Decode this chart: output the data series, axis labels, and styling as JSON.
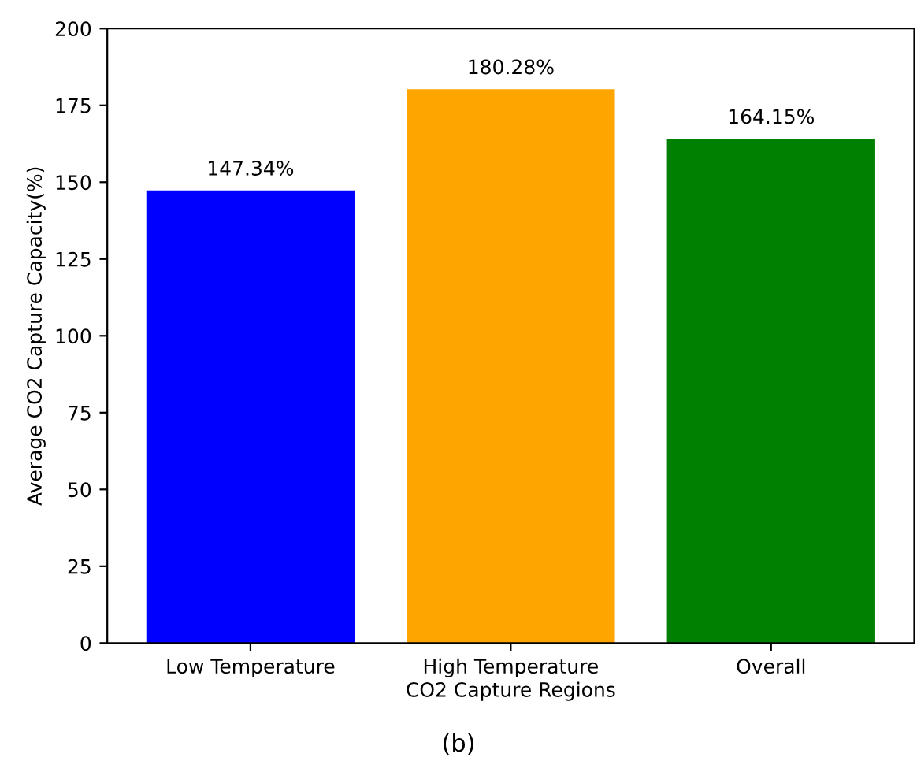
{
  "chart_data": {
    "type": "bar",
    "xlabel": "CO2 Capture Regions",
    "ylabel": "Average CO2 Capture Capacity(%)",
    "categories": [
      "Low Temperature",
      "High Temperature",
      "Overall"
    ],
    "values": [
      147.34,
      180.28,
      164.15
    ],
    "colors": [
      "#0000ff",
      "#ffa500",
      "#008000"
    ],
    "value_labels": [
      "147.34%",
      "180.28%",
      "164.15%"
    ],
    "ylim": [
      0,
      200
    ],
    "yticks": [
      0,
      25,
      50,
      75,
      100,
      125,
      150,
      175,
      200
    ],
    "annotations": [
      "(b)"
    ]
  }
}
